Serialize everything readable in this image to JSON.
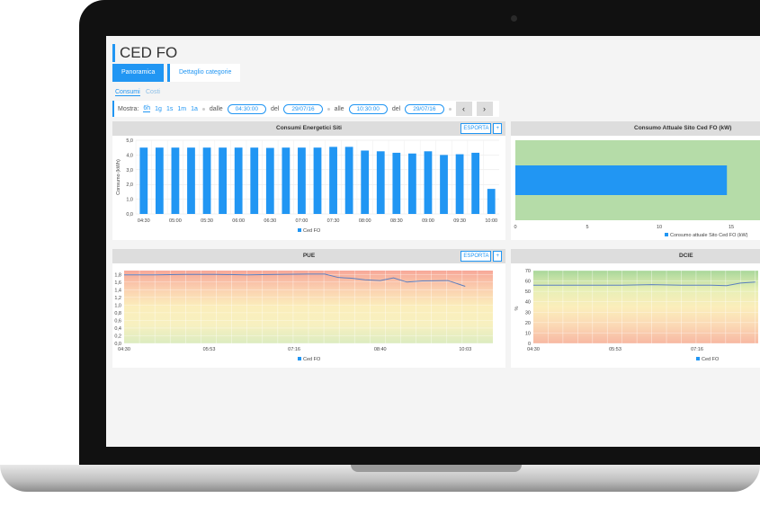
{
  "page": {
    "title": "CED FO",
    "tabs": [
      "Panoramica",
      "Dettaglio categorie"
    ],
    "subtabs": [
      "Consumi",
      "Costi"
    ]
  },
  "toolbar": {
    "show_label": "Mostra:",
    "periods": [
      "6h",
      "1g",
      "1s",
      "1m",
      "1a"
    ],
    "active_period": "6h",
    "from_label": "dalle",
    "from_time": "04:30:00",
    "from_date_label": "del",
    "from_date": "29/07/16",
    "to_label": "alle",
    "to_time": "10:30:00",
    "to_date_label": "del",
    "to_date": "29/07/16",
    "prev": "‹",
    "next": "›"
  },
  "export_label": "ESPORTA",
  "expand_label": "+",
  "colors": {
    "accent": "#2196f3",
    "line": "#5b7fbf"
  },
  "chart_data": [
    {
      "type": "bar",
      "title": "Consumi Energetici Siti",
      "ylabel": "Consumo (kWh)",
      "ylim": [
        0,
        5
      ],
      "yticks": [
        "0,0",
        "1,0",
        "2,0",
        "3,0",
        "4,0",
        "5,0"
      ],
      "categories": [
        "04:30",
        "04:45",
        "05:00",
        "05:15",
        "05:30",
        "05:45",
        "06:00",
        "06:15",
        "06:30",
        "06:45",
        "07:00",
        "07:15",
        "07:30",
        "07:45",
        "08:00",
        "08:15",
        "08:30",
        "08:45",
        "09:00",
        "09:15",
        "09:30",
        "09:45",
        "10:00"
      ],
      "xticks": [
        "04:30",
        "05:00",
        "05:30",
        "06:00",
        "06:30",
        "07:00",
        "07:30",
        "08:00",
        "08:30",
        "09:00",
        "09:30",
        "10:00"
      ],
      "series": [
        {
          "name": "Ced FO",
          "values": [
            4.5,
            4.5,
            4.5,
            4.5,
            4.5,
            4.5,
            4.5,
            4.5,
            4.48,
            4.5,
            4.5,
            4.5,
            4.55,
            4.55,
            4.3,
            4.25,
            4.15,
            4.1,
            4.25,
            4.0,
            4.05,
            4.15,
            1.7
          ]
        }
      ],
      "legend": "bottom"
    },
    {
      "type": "bar",
      "orientation": "horizontal",
      "title": "Consumo Attuale Sito Ced FO (kW)",
      "xlim": [
        0,
        17
      ],
      "xticks": [
        0,
        5,
        10,
        15
      ],
      "series": [
        {
          "name": "Consumo attuale Sito Ced FO (kW)",
          "values": [
            14.7
          ]
        }
      ],
      "background": "#b5dca8",
      "legend": "bottom-right"
    },
    {
      "type": "line",
      "title": "PUE",
      "ylim": [
        0,
        1.9
      ],
      "yticks": [
        "0,0",
        "0,2",
        "0,4",
        "0,6",
        "0,8",
        "1,0",
        "1,2",
        "1,4",
        "1,6",
        "1,8"
      ],
      "xticks": [
        "04:30",
        "05:53",
        "07:16",
        "08:40",
        "10:03"
      ],
      "x": [
        "04:30",
        "05:00",
        "05:30",
        "06:00",
        "06:30",
        "07:00",
        "07:30",
        "07:46",
        "07:59",
        "08:12",
        "08:25",
        "08:40",
        "08:53",
        "09:06",
        "09:21",
        "09:46",
        "10:03"
      ],
      "series": [
        {
          "name": "Ced FO",
          "values": [
            1.79,
            1.79,
            1.8,
            1.8,
            1.79,
            1.8,
            1.81,
            1.81,
            1.72,
            1.7,
            1.66,
            1.64,
            1.71,
            1.6,
            1.63,
            1.64,
            1.49
          ]
        }
      ],
      "background": "gradient red-yellow-green",
      "legend": "bottom"
    },
    {
      "type": "line",
      "title": "DCIE",
      "ylabel": "%",
      "ylim": [
        0,
        70
      ],
      "yticks": [
        "0",
        "10",
        "20",
        "30",
        "40",
        "50",
        "60",
        "70"
      ],
      "xticks": [
        "04:30",
        "05:53",
        "07:16"
      ],
      "x": [
        "04:30",
        "05:00",
        "05:30",
        "06:00",
        "06:30",
        "07:00",
        "07:30",
        "07:46",
        "08:00",
        "08:15"
      ],
      "series": [
        {
          "name": "Ced FO",
          "values": [
            56,
            56,
            56,
            56,
            56.5,
            56,
            56,
            55.5,
            58,
            59
          ]
        }
      ],
      "background": "gradient green-yellow-red",
      "legend": "bottom"
    }
  ]
}
